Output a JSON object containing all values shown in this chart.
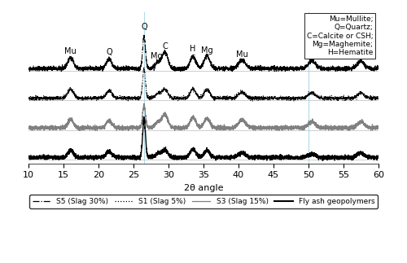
{
  "x_min": 10,
  "x_max": 60,
  "xlabel": "2θ angle",
  "vlines": [
    26.5,
    50.0
  ],
  "legend_text": "Mu=Mullite;\nQ=Quartz;\nC=Calcite or CSH;\nMg=Maghemite;\nH=Hematite",
  "series_labels": [
    "S5 (Slag 30%)",
    "S1 (Slag 5%)",
    "S3 (Slag 15%)",
    "Fly ash geopolymers"
  ],
  "series_linestyles": [
    "-.",
    ":",
    "-",
    "-"
  ],
  "series_colors": [
    "black",
    "black",
    "gray",
    "black"
  ],
  "series_linewidths": [
    0.7,
    0.7,
    0.7,
    1.0
  ],
  "offsets": [
    1.5,
    1.0,
    0.5,
    0.0
  ],
  "noise_seed": 42,
  "background_color": "white",
  "grid_color": "#bbbbbb",
  "label_fontsize": 8,
  "tick_fontsize": 8,
  "ann_fontsize": 7
}
